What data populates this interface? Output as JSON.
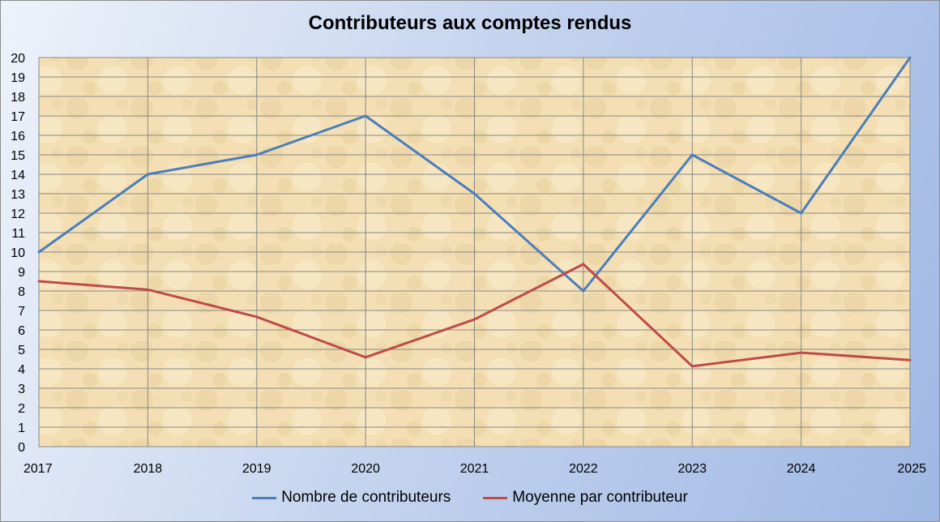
{
  "chart_data": {
    "type": "line",
    "title": "Contributeurs aux comptes rendus",
    "xlabel": "",
    "ylabel": "",
    "x": [
      "2017",
      "2018",
      "2019",
      "2020",
      "2021",
      "2022",
      "2023",
      "2024",
      "2025"
    ],
    "ylim": [
      0,
      20
    ],
    "yticks": [
      "0",
      "1",
      "2",
      "3",
      "4",
      "5",
      "6",
      "7",
      "8",
      "9",
      "10",
      "11",
      "12",
      "13",
      "14",
      "15",
      "16",
      "17",
      "18",
      "19",
      "20"
    ],
    "grid": true,
    "legend_position": "bottom",
    "series": [
      {
        "name": "Nombre de contributeurs",
        "color": "#4a7ebb",
        "values": [
          10,
          14,
          15,
          17,
          13,
          8,
          15,
          12,
          20
        ]
      },
      {
        "name": "Moyenne par contributeur",
        "color": "#be4b48",
        "values": [
          8.5,
          8.07,
          6.67,
          4.59,
          6.54,
          9.38,
          4.13,
          4.83,
          4.45
        ]
      }
    ]
  },
  "colors": {
    "plot_background": "#f2ddb0",
    "gridline": "#888888"
  }
}
